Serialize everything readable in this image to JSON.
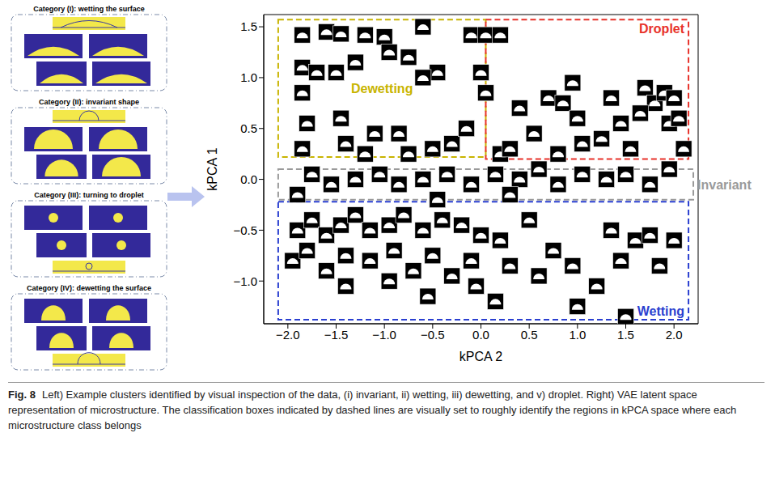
{
  "left_panel": {
    "categories": [
      "Category (I): wetting the surface",
      "Category (II): invariant shape",
      "Category (III): turning to droplet",
      "Category (IV): dewetting the surface"
    ]
  },
  "chart_data": {
    "type": "scatter",
    "x_label": "kPCA 2",
    "y_label": "kPCA 1",
    "xlim": [
      -2.25,
      2.25
    ],
    "ylim": [
      -1.42,
      1.62
    ],
    "xticks": [
      {
        "value": -2,
        "label": "−2.0"
      },
      {
        "value": -1.5,
        "label": "−1.5"
      },
      {
        "value": -1,
        "label": "−1.0"
      },
      {
        "value": -0.5,
        "label": "−0.5"
      },
      {
        "value": 0,
        "label": "0.0"
      },
      0.5,
      {
        "value": 1,
        "label": "1.0"
      },
      1.5,
      {
        "value": 2,
        "label": "2.0"
      }
    ],
    "yticks": [
      {
        "value": -1,
        "label": "−1.0"
      },
      {
        "value": -0.5,
        "label": "−0.5"
      },
      {
        "value": 0,
        "label": "0.0"
      },
      0.5,
      {
        "value": 1,
        "label": "1.0"
      },
      1.5
    ],
    "grid": false,
    "marker": "thumbnail",
    "x": [
      -1.85,
      -1.6,
      -1.45,
      -1.2,
      -1.0,
      -0.6,
      -0.1,
      0.05,
      0.2,
      -1.85,
      -1.7,
      -1.5,
      -1.3,
      -0.95,
      -0.75,
      -0.45,
      -0.6,
      -1.85,
      -1.8,
      -1.45,
      -1.4,
      -1.1,
      -0.85,
      -0.5,
      -0.3,
      -0.15,
      0.0,
      0.05,
      -1.85,
      -1.2,
      -0.75,
      0.2,
      0.4,
      0.55,
      0.7,
      0.85,
      0.95,
      1.0,
      1.05,
      1.25,
      1.35,
      1.45,
      1.7,
      1.8,
      1.9,
      1.95,
      2.05,
      2.1,
      0.3,
      0.8,
      1.55,
      1.65,
      2.0,
      -1.75,
      -1.55,
      -1.3,
      -1.05,
      -0.85,
      -0.6,
      -0.35,
      -0.1,
      0.15,
      0.4,
      0.6,
      0.8,
      1.05,
      1.3,
      1.5,
      1.75,
      1.95,
      -1.9,
      -0.45,
      0.3,
      -1.9,
      -1.75,
      -1.6,
      -1.45,
      -1.3,
      -1.15,
      -0.95,
      -0.8,
      -0.6,
      -0.4,
      -0.2,
      0.0,
      -1.95,
      -1.8,
      -1.6,
      -1.4,
      -1.15,
      -0.9,
      -0.7,
      -0.5,
      -0.3,
      -0.1,
      -0.05,
      -0.55,
      -0.95,
      -1.4,
      0.2,
      0.3,
      0.5,
      0.6,
      0.75,
      0.95,
      1.0,
      1.2,
      1.35,
      1.45,
      1.5,
      1.6,
      1.75,
      1.85,
      2.0,
      0.15
    ],
    "y": [
      1.42,
      1.45,
      1.43,
      1.42,
      1.4,
      1.5,
      1.42,
      1.42,
      1.42,
      1.1,
      1.05,
      1.05,
      1.15,
      1.25,
      1.2,
      1.05,
      1.0,
      0.85,
      0.55,
      0.6,
      0.35,
      0.45,
      0.45,
      0.3,
      0.35,
      0.5,
      1.05,
      0.85,
      0.3,
      0.25,
      0.25,
      0.25,
      0.7,
      0.45,
      0.8,
      0.75,
      0.95,
      0.6,
      0.35,
      0.4,
      0.8,
      0.55,
      0.9,
      0.75,
      0.85,
      0.55,
      0.6,
      0.3,
      0.3,
      0.25,
      0.3,
      0.65,
      0.8,
      0.05,
      -0.05,
      0.0,
      0.05,
      -0.05,
      0.0,
      0.05,
      -0.05,
      0.05,
      0.0,
      0.1,
      -0.05,
      0.05,
      0.0,
      0.05,
      -0.05,
      0.1,
      -0.15,
      -0.2,
      -0.15,
      -0.5,
      -0.4,
      -0.55,
      -0.45,
      -0.35,
      -0.5,
      -0.45,
      -0.35,
      -0.5,
      -0.4,
      -0.45,
      -0.55,
      -0.8,
      -0.7,
      -0.9,
      -0.75,
      -0.8,
      -0.7,
      -0.9,
      -0.75,
      -0.95,
      -0.8,
      -1.05,
      -1.15,
      -1.0,
      -1.05,
      -0.6,
      -0.85,
      -0.4,
      -0.95,
      -0.7,
      -0.85,
      -1.25,
      -1.05,
      -0.5,
      -0.8,
      -1.35,
      -0.6,
      -0.55,
      -0.85,
      -0.6,
      -1.2
    ],
    "regions": [
      {
        "name": "Dewetting",
        "color": "#c8b400",
        "x": [
          -2.1,
          0.05
        ],
        "y": [
          0.22,
          1.57
        ]
      },
      {
        "name": "Droplet",
        "color": "#e8322a",
        "x": [
          0.05,
          2.15
        ],
        "y": [
          0.2,
          1.57
        ]
      },
      {
        "name": "Invariant",
        "color": "#9a9a9a",
        "x": [
          -2.1,
          2.2
        ],
        "y": [
          -0.2,
          0.1
        ]
      },
      {
        "name": "Wetting",
        "color": "#2a3fd0",
        "x": [
          -2.1,
          2.15
        ],
        "y": [
          -1.38,
          -0.22
        ]
      }
    ]
  },
  "caption": {
    "label": "Fig. 8",
    "text": "Left) Example clusters identified by visual inspection of the data, (i) invariant, ii) wetting, iii) dewetting, and v) droplet. Right) VAE latent space representation of microstructure. The classification boxes indicated by dashed lines are visually set to roughly identify the regions in kPCA space where each microstructure class belongs"
  }
}
